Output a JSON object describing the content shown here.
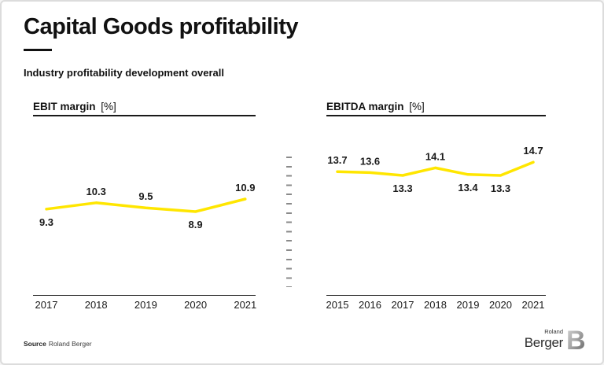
{
  "header": {
    "title": "Capital Goods profitability",
    "subtitle": "Industry profitability development overall"
  },
  "colors": {
    "accent_yellow": "#FFE600",
    "text_dark": "#1A1A1A",
    "divider_gray": "#8A8A8A"
  },
  "chart_data": [
    {
      "type": "line",
      "title": "EBIT margin",
      "unit": "[%]",
      "categories": [
        "2017",
        "2018",
        "2019",
        "2020",
        "2021"
      ],
      "values": [
        9.3,
        10.3,
        9.5,
        8.9,
        10.9
      ],
      "label_positions": [
        "below",
        "above",
        "above",
        "below",
        "above"
      ],
      "line_color": "#FFE600",
      "xlabel": "",
      "ylabel": "",
      "y_axis_visible": false,
      "grid": false,
      "legend": "none"
    },
    {
      "type": "line",
      "title": "EBITDA margin",
      "unit": "[%]",
      "categories": [
        "2015",
        "2016",
        "2017",
        "2018",
        "2019",
        "2020",
        "2021"
      ],
      "values": [
        13.7,
        13.6,
        13.3,
        14.1,
        13.4,
        13.3,
        14.7
      ],
      "label_positions": [
        "above",
        "above",
        "below",
        "above",
        "below",
        "below",
        "above"
      ],
      "line_color": "#FFE600",
      "xlabel": "",
      "ylabel": "",
      "y_axis_visible": false,
      "grid": false,
      "legend": "none"
    }
  ],
  "footer": {
    "source_label": "Source",
    "source_text": "Roland Berger",
    "logo_top": "Roland",
    "logo_bottom": "Berger",
    "logo_b": "B"
  }
}
